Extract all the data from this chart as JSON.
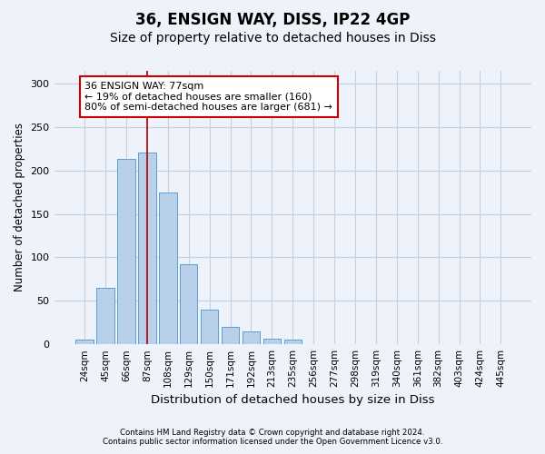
{
  "title1": "36, ENSIGN WAY, DISS, IP22 4GP",
  "title2": "Size of property relative to detached houses in Diss",
  "xlabel": "Distribution of detached houses by size in Diss",
  "ylabel": "Number of detached properties",
  "categories": [
    "24sqm",
    "45sqm",
    "66sqm",
    "87sqm",
    "108sqm",
    "129sqm",
    "150sqm",
    "171sqm",
    "192sqm",
    "213sqm",
    "235sqm",
    "256sqm",
    "277sqm",
    "298sqm",
    "319sqm",
    "340sqm",
    "361sqm",
    "382sqm",
    "403sqm",
    "424sqm",
    "445sqm"
  ],
  "values": [
    5,
    65,
    213,
    220,
    175,
    92,
    40,
    20,
    15,
    6,
    5,
    0,
    0,
    0,
    0,
    0,
    0,
    0,
    0,
    0,
    0
  ],
  "bar_color": "#b8d0ea",
  "bar_edge_color": "#5a9fd4",
  "vline_x": 3.0,
  "vline_color": "#aa0000",
  "annotation_text": "36 ENSIGN WAY: 77sqm\n← 19% of detached houses are smaller (160)\n80% of semi-detached houses are larger (681) →",
  "annotation_box_color": "#ffffff",
  "annotation_box_edge": "#cc0000",
  "ylim": [
    0,
    315
  ],
  "yticks": [
    0,
    50,
    100,
    150,
    200,
    250,
    300
  ],
  "grid_color": "#c8d0e0",
  "bg_color": "#eef2fa",
  "footnote1": "Contains HM Land Registry data © Crown copyright and database right 2024.",
  "footnote2": "Contains public sector information licensed under the Open Government Licence v3.0.",
  "title1_fontsize": 12,
  "title2_fontsize": 10,
  "xlabel_fontsize": 9.5,
  "ylabel_fontsize": 8.5,
  "tick_fontsize": 7.5,
  "annotation_fontsize": 8,
  "footnote_fontsize": 6.2
}
